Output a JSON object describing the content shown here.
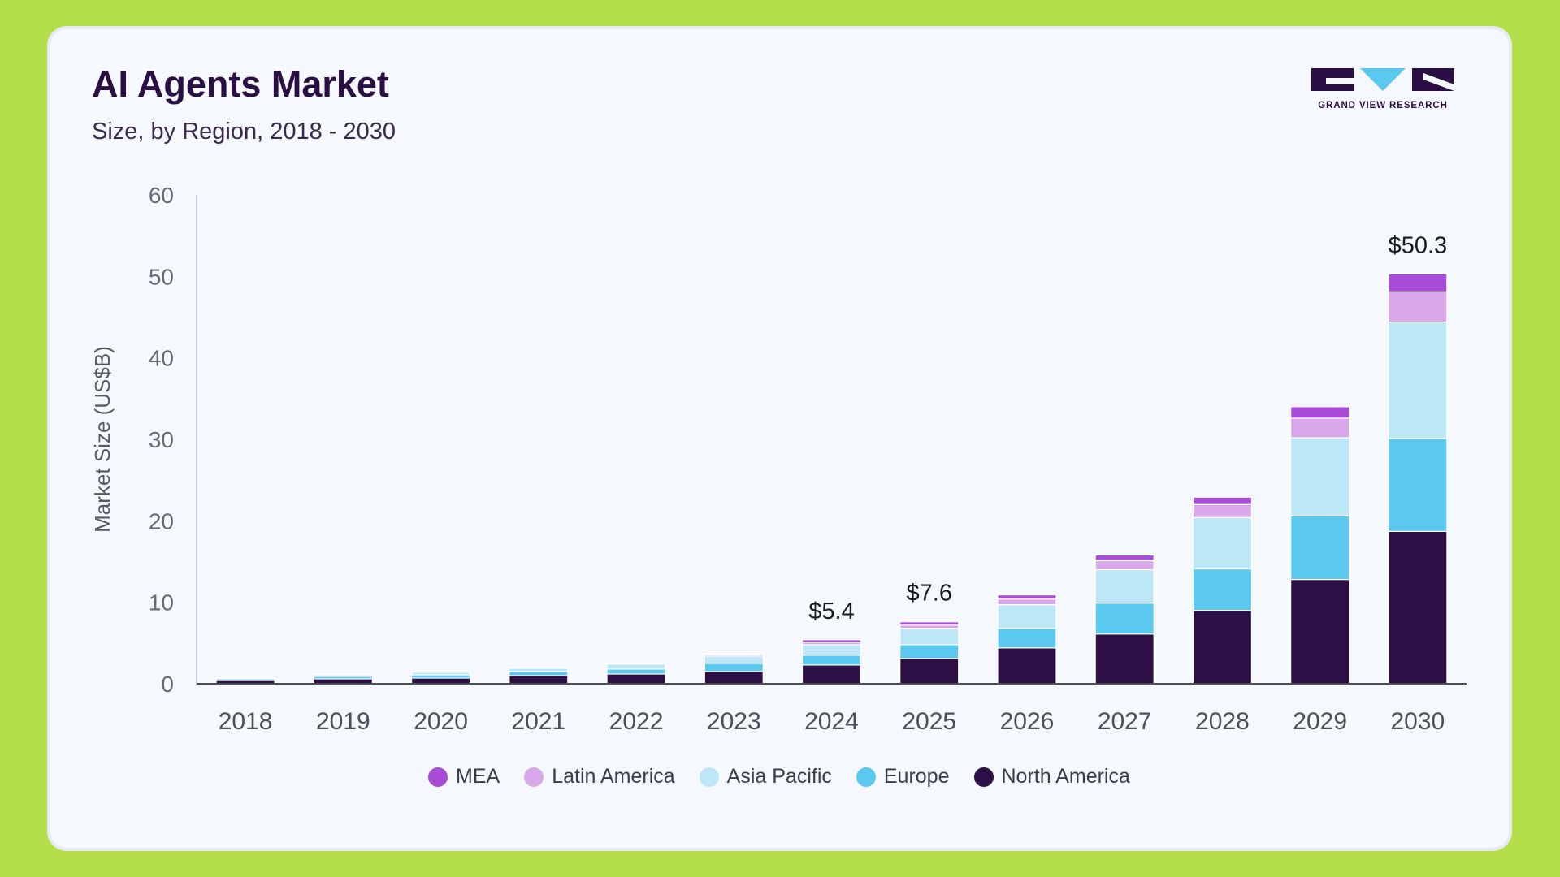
{
  "header": {
    "title": "AI Agents Market",
    "subtitle": "Size, by Region, 2018 - 2030"
  },
  "logo": {
    "text": "GRAND VIEW RESEARCH"
  },
  "chart_data": {
    "type": "bar",
    "stacked": true,
    "title": "AI Agents Market",
    "subtitle": "Size, by Region, 2018 - 2030",
    "xlabel": "",
    "ylabel": "Market Size (US$B)",
    "ylim": [
      0,
      60
    ],
    "yticks": [
      0,
      10,
      20,
      30,
      40,
      50,
      60
    ],
    "categories": [
      "2018",
      "2019",
      "2020",
      "2021",
      "2022",
      "2023",
      "2024",
      "2025",
      "2026",
      "2027",
      "2028",
      "2029",
      "2030"
    ],
    "series": [
      {
        "name": "North America",
        "color": "#2b0f45",
        "values": [
          0.4,
          0.6,
          0.7,
          1.0,
          1.2,
          1.5,
          2.3,
          3.1,
          4.4,
          6.1,
          9.0,
          12.8,
          18.7
        ]
      },
      {
        "name": "Europe",
        "color": "#5bc8f0",
        "values": [
          0.2,
          0.3,
          0.4,
          0.5,
          0.6,
          1.0,
          1.2,
          1.7,
          2.4,
          3.8,
          5.1,
          7.8,
          11.4
        ]
      },
      {
        "name": "Asia Pacific",
        "color": "#bde6f7",
        "values": [
          0.1,
          0.2,
          0.3,
          0.4,
          0.6,
          0.9,
          1.3,
          2.0,
          2.9,
          4.1,
          6.3,
          9.6,
          14.3
        ]
      },
      {
        "name": "Latin America",
        "color": "#d9a8ea",
        "values": [
          0.03,
          0.05,
          0.06,
          0.08,
          0.1,
          0.2,
          0.3,
          0.4,
          0.7,
          1.1,
          1.6,
          2.4,
          3.7
        ]
      },
      {
        "name": "MEA",
        "color": "#a84bd6",
        "values": [
          0.02,
          0.03,
          0.04,
          0.05,
          0.06,
          0.1,
          0.3,
          0.4,
          0.5,
          0.7,
          0.9,
          1.4,
          2.2
        ]
      }
    ],
    "annotations": [
      {
        "category": "2024",
        "label": "$5.4"
      },
      {
        "category": "2025",
        "label": "$7.6"
      },
      {
        "category": "2030",
        "label": "$50.3"
      }
    ],
    "legend": {
      "placement": "bottom-center",
      "order": [
        "MEA",
        "Latin America",
        "Asia Pacific",
        "Europe",
        "North America"
      ]
    }
  },
  "colors": {
    "page_background": "#b5df4a",
    "card_background": "#f5f8fc",
    "title": "#2a0f45"
  }
}
